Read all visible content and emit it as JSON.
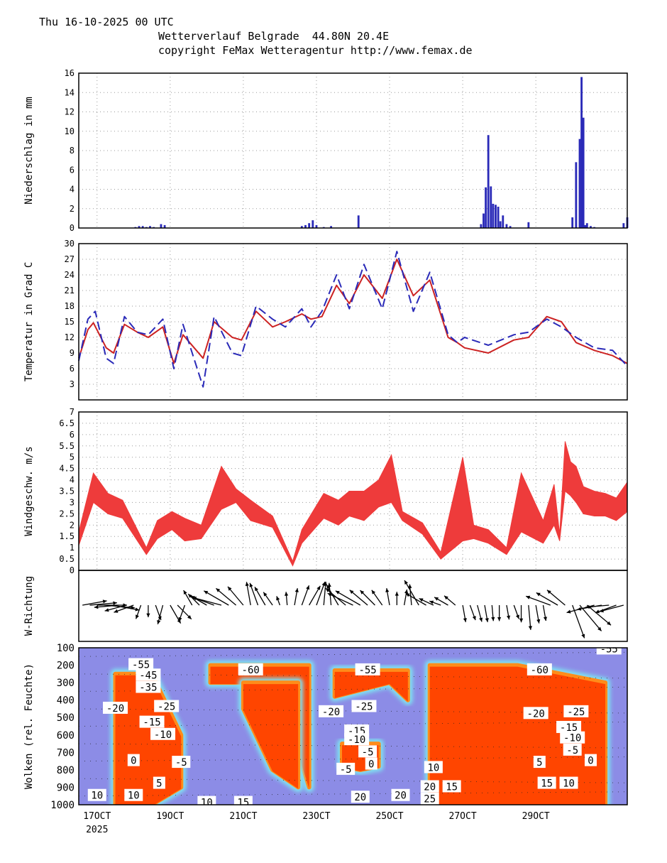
{
  "header": {
    "date_line": "Thu 16-10-2025 00 UTC",
    "title_line": "Wetterverlauf Belgrade  44.80N 20.4E",
    "copyright_line": "copyright FeMax Wetteragentur http://www.femax.de"
  },
  "x_axis": {
    "ticks": [
      {
        "label": "17OCT",
        "t": 0.5
      },
      {
        "label": "19OCT",
        "t": 2.5
      },
      {
        "label": "21OCT",
        "t": 4.5
      },
      {
        "label": "23OCT",
        "t": 6.5
      },
      {
        "label": "25OCT",
        "t": 8.5
      },
      {
        "label": "27OCT",
        "t": 10.5
      },
      {
        "label": "29OCT",
        "t": 12.5
      }
    ],
    "year_label": "2025",
    "range_days": [
      0,
      15
    ]
  },
  "chart_data": [
    {
      "type": "bar",
      "name": "precipitation",
      "ylabel": "Niederschlag in mm",
      "ylim": [
        0,
        16
      ],
      "yticks": [
        0,
        2,
        4,
        6,
        8,
        10,
        12,
        14,
        16
      ],
      "color": "#2a2ab8",
      "x_days": [
        1.55,
        1.65,
        1.75,
        1.85,
        1.95,
        2.05,
        2.25,
        2.35,
        6.1,
        6.2,
        6.3,
        6.4,
        6.5,
        6.7,
        6.9,
        7.65,
        11.0,
        11.07,
        11.13,
        11.2,
        11.27,
        11.33,
        11.4,
        11.47,
        11.53,
        11.6,
        11.7,
        11.8,
        12.3,
        13.5,
        13.6,
        13.7,
        13.75,
        13.8,
        13.85,
        13.9,
        14.0,
        14.1,
        14.9,
        15.0
      ],
      "values": [
        0.1,
        0.2,
        0.2,
        0.1,
        0.2,
        0.1,
        0.4,
        0.3,
        0.2,
        0.3,
        0.5,
        0.8,
        0.3,
        0.1,
        0.2,
        1.3,
        0.4,
        1.5,
        4.2,
        9.6,
        4.3,
        2.5,
        2.4,
        2.2,
        0.7,
        1.3,
        0.4,
        0.2,
        0.6,
        1.1,
        6.8,
        9.2,
        15.6,
        11.4,
        0.3,
        0.5,
        0.2,
        0.1,
        0.5,
        1.1
      ]
    },
    {
      "type": "line",
      "name": "temperature",
      "ylabel": "Temperatur in Grad C",
      "ylim": [
        0,
        30
      ],
      "yticks": [
        3,
        6,
        9,
        12,
        15,
        18,
        21,
        24,
        27,
        30
      ],
      "series": [
        {
          "name": "model-1",
          "color": "#cc2222",
          "dash": "solid",
          "x": [
            0,
            0.25,
            0.4,
            0.75,
            0.95,
            1.25,
            1.6,
            1.9,
            2.3,
            2.6,
            2.85,
            3.4,
            3.7,
            4.2,
            4.45,
            4.85,
            5.3,
            5.65,
            6.1,
            6.35,
            6.65,
            7.05,
            7.4,
            7.8,
            8.3,
            8.7,
            9.15,
            9.6,
            10.1,
            10.35,
            10.55,
            11.2,
            11.9,
            12.3,
            12.8,
            13.2,
            13.6,
            14.1,
            14.6,
            15.0
          ],
          "y": [
            8,
            13.5,
            14.8,
            10,
            9,
            14.5,
            13,
            12,
            14,
            7,
            12.5,
            8,
            15,
            12,
            11.5,
            17,
            14,
            15,
            16.5,
            15.5,
            16,
            22,
            18.5,
            24,
            19.5,
            27,
            20,
            23,
            12,
            11,
            10,
            9,
            11.5,
            12,
            16,
            15,
            11,
            9.5,
            8.5,
            7
          ]
        },
        {
          "name": "model-2",
          "color": "#2a2ab8",
          "dash": "dashed",
          "x": [
            0,
            0.25,
            0.45,
            0.75,
            0.95,
            1.25,
            1.6,
            1.9,
            2.3,
            2.6,
            2.85,
            3.4,
            3.7,
            4.2,
            4.45,
            4.85,
            5.3,
            5.65,
            6.1,
            6.35,
            6.65,
            7.05,
            7.4,
            7.8,
            8.3,
            8.7,
            9.15,
            9.6,
            10.1,
            10.35,
            10.55,
            11.2,
            11.9,
            12.3,
            12.8,
            13.2,
            13.6,
            14.1,
            14.6,
            15.0
          ],
          "y": [
            7.5,
            15.5,
            17,
            8,
            7,
            16,
            13,
            12.5,
            15.5,
            6,
            14.5,
            2.5,
            16,
            9,
            8.5,
            18,
            15.5,
            14,
            17.5,
            14,
            17,
            24,
            17.5,
            26,
            17.5,
            28.5,
            17,
            24.5,
            12.5,
            11,
            12,
            10.5,
            12.5,
            13,
            15.5,
            14,
            12,
            10,
            9.5,
            6.5
          ]
        }
      ]
    },
    {
      "type": "area",
      "name": "wind-speed",
      "ylabel": "Windgeschw. m/s",
      "ylim": [
        0,
        7
      ],
      "yticks": [
        0,
        0.5,
        1,
        1.5,
        2,
        2.5,
        3,
        3.5,
        4,
        4.5,
        5,
        5.5,
        6,
        6.5,
        7
      ],
      "color": "#ee3b3b",
      "x": [
        0,
        0.4,
        0.8,
        1.2,
        1.85,
        2.15,
        2.55,
        2.9,
        3.35,
        3.9,
        4.3,
        4.7,
        5.3,
        5.85,
        6.1,
        6.7,
        7.1,
        7.4,
        7.8,
        8.2,
        8.55,
        8.85,
        9.4,
        9.9,
        10.5,
        10.8,
        11.2,
        11.7,
        12.1,
        12.7,
        13.0,
        13.15,
        13.3,
        13.45,
        13.6,
        13.8,
        14.1,
        14.4,
        14.7,
        15.0
      ],
      "lo": [
        1.1,
        3.0,
        2.5,
        2.3,
        0.7,
        1.4,
        1.8,
        1.3,
        1.4,
        2.7,
        3.0,
        2.2,
        1.9,
        0.2,
        1.2,
        2.3,
        2.0,
        2.4,
        2.2,
        2.8,
        3.0,
        2.2,
        1.6,
        0.5,
        1.3,
        1.4,
        1.2,
        0.7,
        1.7,
        1.2,
        2.0,
        1.3,
        3.5,
        3.3,
        3.0,
        2.5,
        2.4,
        2.4,
        2.2,
        2.6
      ],
      "hi": [
        1.7,
        4.3,
        3.4,
        3.1,
        1.0,
        2.2,
        2.6,
        2.3,
        2.0,
        4.6,
        3.6,
        3.1,
        2.4,
        0.4,
        1.8,
        3.4,
        3.1,
        3.5,
        3.5,
        4.0,
        5.1,
        2.6,
        2.1,
        0.8,
        5.0,
        2.0,
        1.8,
        1.0,
        4.3,
        2.2,
        3.8,
        1.6,
        5.7,
        4.8,
        4.6,
        3.7,
        3.5,
        3.4,
        3.2,
        3.9
      ]
    },
    {
      "type": "scatter",
      "name": "wind-direction",
      "ylabel": "W-Richtung",
      "encoding": "arrow angle = wind direction, arrow length = speed",
      "x_days": [
        0.1,
        0.3,
        0.5,
        0.7,
        0.9,
        1.1,
        1.3,
        1.5,
        1.7,
        1.9,
        2.1,
        2.3,
        2.5,
        2.7,
        2.9,
        3.1,
        3.3,
        3.5,
        3.7,
        3.9,
        4.1,
        4.3,
        4.5,
        4.7,
        4.9,
        5.1,
        5.3,
        5.5,
        5.7,
        5.9,
        6.1,
        6.3,
        6.5,
        6.7,
        6.9,
        7.1,
        7.3,
        7.5,
        7.7,
        7.9,
        8.1,
        8.3,
        8.5,
        8.7,
        8.9,
        9.1,
        9.3,
        9.5,
        9.7,
        9.9,
        10.1,
        10.3,
        10.5,
        10.7,
        10.9,
        11.1,
        11.3,
        11.5,
        11.7,
        11.9,
        12.1,
        12.3,
        12.5,
        12.7,
        12.9,
        13.1,
        13.3,
        13.5,
        13.7,
        13.9,
        14.1,
        14.3,
        14.5,
        14.7,
        14.9
      ],
      "angles_deg": [
        10,
        5,
        0,
        -5,
        -10,
        185,
        195,
        200,
        250,
        270,
        290,
        255,
        300,
        315,
        250,
        120,
        135,
        150,
        160,
        165,
        150,
        140,
        130,
        100,
        110,
        120,
        125,
        110,
        95,
        80,
        70,
        60,
        70,
        85,
        95,
        120,
        140,
        155,
        150,
        140,
        135,
        125,
        100,
        90,
        80,
        95,
        120,
        150,
        155,
        160,
        150,
        140,
        280,
        290,
        285,
        280,
        275,
        270,
        280,
        290,
        270,
        275,
        280,
        280,
        160,
        150,
        140,
        290,
        310,
        320,
        195,
        190,
        185,
        200,
        195
      ],
      "speeds": [
        3.0,
        3.4,
        3.8,
        3.9,
        3.5,
        3.0,
        2.6,
        2.4,
        1.4,
        1.0,
        1.6,
        2.2,
        2.4,
        2.2,
        1.8,
        1.8,
        1.6,
        2.0,
        3.0,
        3.8,
        3.6,
        3.2,
        2.9,
        2.8,
        2.8,
        2.4,
        1.6,
        0.6,
        1.2,
        1.8,
        2.4,
        2.6,
        3.0,
        2.8,
        2.6,
        2.8,
        3.2,
        3.5,
        3.6,
        2.8,
        2.4,
        2.0,
        1.8,
        1.2,
        1.6,
        2.4,
        3.6,
        2.8,
        1.6,
        1.0,
        1.6,
        1.4,
        1.8,
        1.6,
        1.8,
        1.8,
        1.6,
        1.6,
        1.4,
        1.4,
        1.8,
        3.0,
        2.0,
        1.6,
        3.2,
        3.0,
        2.8,
        4.6,
        4.4,
        4.0,
        3.6,
        3.0,
        2.8,
        2.6,
        3.0
      ]
    },
    {
      "type": "heatmap",
      "name": "clouds",
      "ylabel": "Wolken (rel. Feuchte)",
      "ylim": [
        1000,
        100
      ],
      "yticks": [
        100,
        200,
        300,
        400,
        500,
        600,
        700,
        800,
        900,
        1000
      ],
      "colors": {
        "background": "#8c8ce6",
        "wet": "#ff4500",
        "moist": "#ff8c1a",
        "edge": "#7fe0f0"
      },
      "cloud_regions": [
        {
          "days": [
            1.0,
            2.0,
            2.8
          ],
          "top_hpa": [
            250,
            250,
            600
          ],
          "bottom_hpa": [
            1000,
            1000,
            900
          ]
        },
        {
          "days": [
            3.6,
            5.4,
            6.3
          ],
          "top_hpa": [
            200,
            200,
            200
          ],
          "bottom_hpa": [
            300,
            300,
            900
          ]
        },
        {
          "days": [
            4.5,
            5.3,
            6.0
          ],
          "top_hpa": [
            300,
            300,
            300
          ],
          "bottom_hpa": [
            450,
            800,
            900
          ]
        },
        {
          "days": [
            7.0,
            8.5,
            9.0
          ],
          "top_hpa": [
            230,
            230,
            230
          ],
          "bottom_hpa": [
            380,
            300,
            400
          ]
        },
        {
          "days": [
            7.2,
            7.7,
            8.2
          ],
          "top_hpa": [
            650,
            650,
            650
          ],
          "bottom_hpa": [
            780,
            800,
            780
          ]
        },
        {
          "days": [
            9.6,
            12.0,
            14.4
          ],
          "top_hpa": [
            200,
            200,
            300
          ],
          "bottom_hpa": [
            1000,
            1000,
            1000
          ]
        }
      ],
      "contour_labels": [
        {
          "text": "-55",
          "day": 1.7,
          "hpa": 200
        },
        {
          "text": "-45",
          "day": 1.9,
          "hpa": 260
        },
        {
          "text": "-35",
          "day": 1.9,
          "hpa": 330
        },
        {
          "text": "-20",
          "day": 1.0,
          "hpa": 450
        },
        {
          "text": "-25",
          "day": 2.4,
          "hpa": 440
        },
        {
          "text": "-15",
          "day": 2.0,
          "hpa": 530
        },
        {
          "text": "-10",
          "day": 2.3,
          "hpa": 600
        },
        {
          "text": "0",
          "day": 1.5,
          "hpa": 750
        },
        {
          "text": "-5",
          "day": 2.8,
          "hpa": 760
        },
        {
          "text": "5",
          "day": 2.2,
          "hpa": 880
        },
        {
          "text": "10",
          "day": 0.5,
          "hpa": 950
        },
        {
          "text": "10",
          "day": 1.5,
          "hpa": 950
        },
        {
          "text": "10",
          "day": 3.5,
          "hpa": 990
        },
        {
          "text": "15",
          "day": 4.5,
          "hpa": 990
        },
        {
          "text": "-60",
          "day": 4.7,
          "hpa": 230
        },
        {
          "text": "-20",
          "day": 6.9,
          "hpa": 470
        },
        {
          "text": "-55",
          "day": 7.9,
          "hpa": 230
        },
        {
          "text": "-25",
          "day": 7.8,
          "hpa": 440
        },
        {
          "text": "-15",
          "day": 7.6,
          "hpa": 580
        },
        {
          "text": "-10",
          "day": 7.6,
          "hpa": 630
        },
        {
          "text": "-5",
          "day": 7.9,
          "hpa": 700
        },
        {
          "text": "0",
          "day": 8.0,
          "hpa": 770
        },
        {
          "text": "-5",
          "day": 7.3,
          "hpa": 800
        },
        {
          "text": "10",
          "day": 9.7,
          "hpa": 790
        },
        {
          "text": "20",
          "day": 7.7,
          "hpa": 960
        },
        {
          "text": "20",
          "day": 8.8,
          "hpa": 950
        },
        {
          "text": "20",
          "day": 9.6,
          "hpa": 900
        },
        {
          "text": "25",
          "day": 9.6,
          "hpa": 970
        },
        {
          "text": "15",
          "day": 10.2,
          "hpa": 900
        },
        {
          "text": "-60",
          "day": 12.6,
          "hpa": 230
        },
        {
          "text": "-20",
          "day": 12.5,
          "hpa": 480
        },
        {
          "text": "-25",
          "day": 13.6,
          "hpa": 470
        },
        {
          "text": "-15",
          "day": 13.4,
          "hpa": 560
        },
        {
          "text": "-10",
          "day": 13.5,
          "hpa": 620
        },
        {
          "text": "-5",
          "day": 13.5,
          "hpa": 690
        },
        {
          "text": "5",
          "day": 12.6,
          "hpa": 760
        },
        {
          "text": "0",
          "day": 14.0,
          "hpa": 750
        },
        {
          "text": "15",
          "day": 12.8,
          "hpa": 880
        },
        {
          "text": "10",
          "day": 13.4,
          "hpa": 880
        },
        {
          "text": "-55",
          "day": 14.5,
          "hpa": 110
        }
      ]
    }
  ]
}
